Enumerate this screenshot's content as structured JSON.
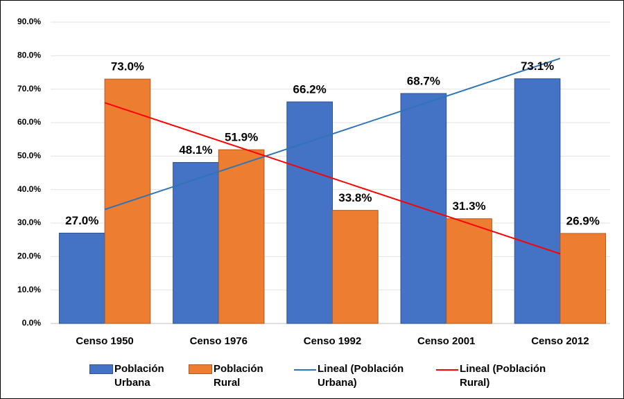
{
  "chart_data": {
    "type": "bar",
    "categories": [
      "Censo 1950",
      "Censo 1976",
      "Censo 1992",
      "Censo 2001",
      "Censo 2012"
    ],
    "series": [
      {
        "name": "Población Urbana",
        "color": "#4472c4",
        "values": [
          27.0,
          48.1,
          66.2,
          68.7,
          73.1
        ],
        "value_labels": [
          "27.0%",
          "48.1%",
          "66.2%",
          "68.7%",
          "73.1%"
        ]
      },
      {
        "name": "Población Rural",
        "color": "#ed7d31",
        "values": [
          73.0,
          51.9,
          33.8,
          31.3,
          26.9
        ],
        "value_labels": [
          "73.0%",
          "51.9%",
          "33.8%",
          "31.3%",
          "26.9%"
        ]
      },
      {
        "name": "Lineal (Población Urbana)",
        "type": "line",
        "color": "#2e75b6",
        "values": [
          34.06,
          45.34,
          56.62,
          67.9,
          79.18
        ]
      },
      {
        "name": "Lineal (Población Rural)",
        "type": "line",
        "color": "#ff0000",
        "values": [
          65.94,
          54.66,
          43.38,
          32.1,
          20.82
        ]
      }
    ],
    "ylim": [
      0,
      90
    ],
    "yticks": [
      {
        "value": 0,
        "label": "0.0%"
      },
      {
        "value": 10,
        "label": "10.0%"
      },
      {
        "value": 20,
        "label": "20.0%"
      },
      {
        "value": 30,
        "label": "30.0%"
      },
      {
        "value": 40,
        "label": "40.0%"
      },
      {
        "value": 50,
        "label": "50.0%"
      },
      {
        "value": 60,
        "label": "60.0%"
      },
      {
        "value": 70,
        "label": "70.0%"
      },
      {
        "value": 80,
        "label": "80.0%"
      },
      {
        "value": 90,
        "label": "90.0%"
      }
    ],
    "grid": true,
    "legend": "bottom"
  }
}
